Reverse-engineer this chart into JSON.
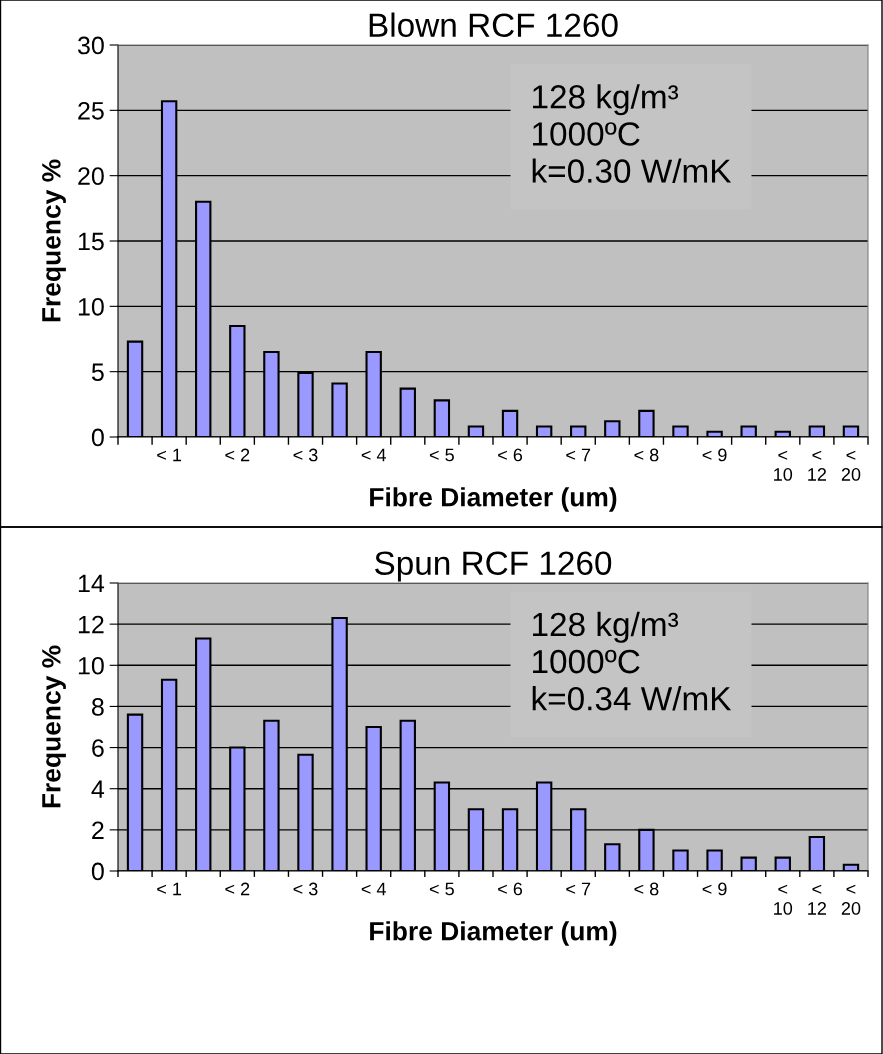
{
  "chart_data": [
    {
      "type": "bar",
      "title": "Blown RCF 1260",
      "xlabel": "Fibre Diameter (um)",
      "ylabel": "Frequency %",
      "categories": [
        null,
        "< 1",
        null,
        "< 2",
        null,
        "< 3",
        null,
        "< 4",
        null,
        "< 5",
        null,
        "< 6",
        null,
        "< 7",
        null,
        "< 8",
        null,
        "< 9",
        null,
        "< 10",
        "< 12",
        "< 20"
      ],
      "values": [
        7.3,
        25.7,
        18,
        8.5,
        6.5,
        4.9,
        4.1,
        6.5,
        3.7,
        2.8,
        0.8,
        2.0,
        0.8,
        0.8,
        1.2,
        2.0,
        0.8,
        0.4,
        0.8,
        0.4,
        0.8,
        0.8
      ],
      "color": "#9999ff",
      "ylim": [
        0,
        30
      ],
      "yticks": [
        0,
        5,
        10,
        15,
        20,
        25,
        30
      ],
      "grid": "y",
      "legend": false,
      "annotations": [
        "128 kg/m³\n1000ºC\nk=0.30 W/mK"
      ]
    },
    {
      "type": "bar",
      "title": "Spun RCF 1260",
      "xlabel": "Fibre Diameter (um)",
      "ylabel": "Frequency %",
      "categories": [
        null,
        "< 1",
        null,
        "< 2",
        null,
        "< 3",
        null,
        "< 4",
        null,
        "< 5",
        null,
        "< 6",
        null,
        "< 7",
        null,
        "< 8",
        null,
        "< 9",
        null,
        "< 10",
        "< 12",
        "< 20"
      ],
      "values": [
        7.6,
        9.3,
        11.3,
        6.0,
        7.3,
        5.65,
        12.3,
        7.0,
        7.3,
        4.3,
        3.0,
        3.0,
        4.3,
        3.0,
        1.3,
        2.0,
        1.0,
        1.0,
        0.65,
        0.65,
        1.65,
        0.3
      ],
      "color": "#9999ff",
      "ylim": [
        0,
        14
      ],
      "yticks": [
        0,
        2,
        4,
        6,
        8,
        10,
        12,
        14
      ],
      "grid": "y",
      "legend": false,
      "annotations": [
        "128 kg/m³\n1000ºC\nk=0.34 W/mK"
      ]
    }
  ]
}
